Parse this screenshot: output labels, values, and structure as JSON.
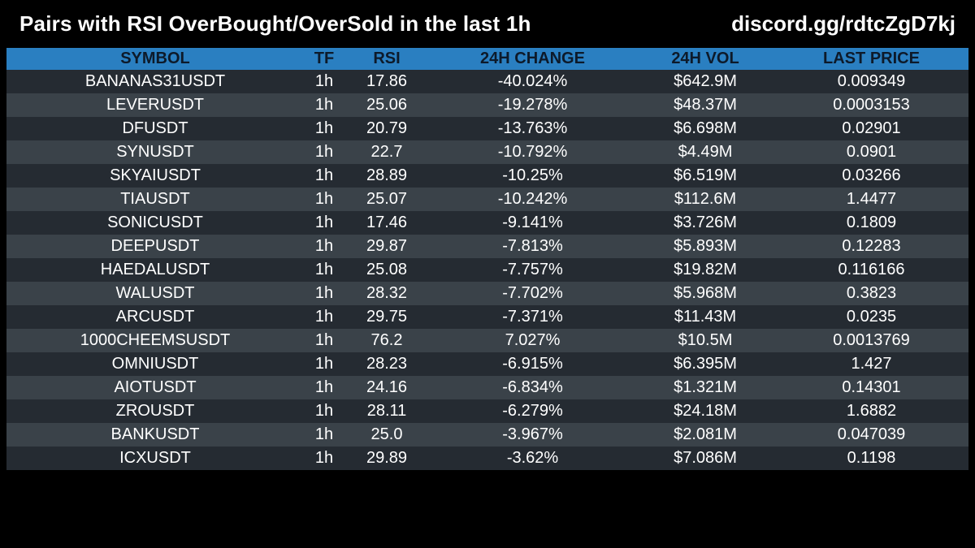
{
  "header": {
    "title": "Pairs with RSI OverBought/OverSold in the last 1h",
    "link": "discord.gg/rdtcZgD7kj"
  },
  "colors": {
    "background": "#000000",
    "header_row": "#2a7fc1",
    "row_dark": "#252b32",
    "row_light": "#3a4249"
  },
  "table": {
    "columns": [
      "SYMBOL",
      "TF",
      "RSI",
      "24H CHANGE",
      "24H VOL",
      "LAST PRICE"
    ],
    "rows": [
      [
        "BANANAS31USDT",
        "1h",
        "17.86",
        "-40.024%",
        "$642.9M",
        "0.009349"
      ],
      [
        "LEVERUSDT",
        "1h",
        "25.06",
        "-19.278%",
        "$48.37M",
        "0.0003153"
      ],
      [
        "DFUSDT",
        "1h",
        "20.79",
        "-13.763%",
        "$6.698M",
        "0.02901"
      ],
      [
        "SYNUSDT",
        "1h",
        "22.7",
        "-10.792%",
        "$4.49M",
        "0.0901"
      ],
      [
        "SKYAIUSDT",
        "1h",
        "28.89",
        "-10.25%",
        "$6.519M",
        "0.03266"
      ],
      [
        "TIAUSDT",
        "1h",
        "25.07",
        "-10.242%",
        "$112.6M",
        "1.4477"
      ],
      [
        "SONICUSDT",
        "1h",
        "17.46",
        "-9.141%",
        "$3.726M",
        "0.1809"
      ],
      [
        "DEEPUSDT",
        "1h",
        "29.87",
        "-7.813%",
        "$5.893M",
        "0.12283"
      ],
      [
        "HAEDALUSDT",
        "1h",
        "25.08",
        "-7.757%",
        "$19.82M",
        "0.116166"
      ],
      [
        "WALUSDT",
        "1h",
        "28.32",
        "-7.702%",
        "$5.968M",
        "0.3823"
      ],
      [
        "ARCUSDT",
        "1h",
        "29.75",
        "-7.371%",
        "$11.43M",
        "0.0235"
      ],
      [
        "1000CHEEMSUSDT",
        "1h",
        "76.2",
        "7.027%",
        "$10.5M",
        "0.0013769"
      ],
      [
        "OMNIUSDT",
        "1h",
        "28.23",
        "-6.915%",
        "$6.395M",
        "1.427"
      ],
      [
        "AIOTUSDT",
        "1h",
        "24.16",
        "-6.834%",
        "$1.321M",
        "0.14301"
      ],
      [
        "ZROUSDT",
        "1h",
        "28.11",
        "-6.279%",
        "$24.18M",
        "1.6882"
      ],
      [
        "BANKUSDT",
        "1h",
        "25.0",
        "-3.967%",
        "$2.081M",
        "0.047039"
      ],
      [
        "ICXUSDT",
        "1h",
        "29.89",
        "-3.62%",
        "$7.086M",
        "0.1198"
      ]
    ]
  }
}
